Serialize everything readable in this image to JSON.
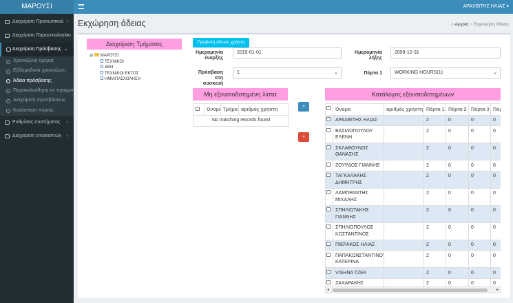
{
  "navbar": {
    "logo": "ΜΑΡΟΥΣΙ",
    "user": "ΑΡΑΧΒΙΤΗΣ ΗΛΙΑΣ"
  },
  "sidebar": {
    "items": [
      {
        "label": "Διαχείριση Προσωπικού"
      },
      {
        "label": "Διαχείριση Παρουσιολογίου"
      },
      {
        "label": "Διαχείριση Πρόσβασης",
        "children": [
          "Χρονοζώνη ημέρας",
          "Εβδομαδιαία χρονοζώνη",
          "Άδεια πρόσβασης",
          "Παρακολούθηση σε πραγματι",
          "Διαχείριση προσβάσεων",
          "Κατάσταση πόρτας"
        ]
      },
      {
        "label": "Ρυθμίσεις συστήματος"
      },
      {
        "label": "Διαχείριση επισκεπτών"
      }
    ]
  },
  "header": {
    "title": "Εκχώρηση άδειας",
    "breadcrumb": [
      "Αρχική",
      "Εκχώρηση άδειας"
    ]
  },
  "department_panel": {
    "title": "Διαχείριση Τμήματος",
    "tree": {
      "label": "ΜΑΡΟΥΣΙ",
      "children": [
        "ΤΕΧΝΙΚΟΙ",
        "ΔΕΗ",
        "ΤΕΧΝΙΚΟΙ ΕΚΤΟΣ",
        "ΗΜΙΑΠΑΣΧΟΛΗΣΗ"
      ]
    }
  },
  "form": {
    "button": "Προβολή άδειας χρήστη",
    "start_label": "Ημερομηνία έναρξης",
    "start": "2019-01-01",
    "end_label": "Ημερομηνία λήξης",
    "end": "2099-12-31",
    "device_label": "Πρόσβαση στη συσκευή",
    "device": "1",
    "door_label": "Πόρτα 1",
    "door": "WORKING HOURS(1)"
  },
  "unauthorized": {
    "title": "Μη εξουσιοδοτημένη λίστα",
    "columns": [
      "Ονομα",
      "Τμήμα",
      "αριθμός χρήστη"
    ],
    "empty": "No matching records found"
  },
  "authorized": {
    "title": "Κατάλογος εξουσιοδοτημένων",
    "columns": [
      "Ονομα",
      "αριθμός χρήστη",
      "Πόρτα 1",
      "Πόρτα 2",
      "Πόρτα 3",
      "Πόρ"
    ],
    "rows": [
      {
        "name": "ΑΡΑΧΒΙΤΗΣ ΗΛΙΑΣ",
        "doors": [
          2,
          0,
          0,
          0
        ]
      },
      {
        "name": "ΒΑΣΙΛΟΠΟΥΛΟΥ ΕΛΕΝΗ",
        "doors": [
          2,
          0,
          0,
          0
        ]
      },
      {
        "name": "ΣΚΛΑΒΟΥΝΟΣ ΘΑΝΑΣΗΣ",
        "doors": [
          2,
          0,
          0,
          0
        ]
      },
      {
        "name": "ΖΟΥΡΔΟΣ ΓΙΑΝΝΗΣ",
        "doors": [
          2,
          0,
          0,
          0
        ]
      },
      {
        "name": "ΤΑΓΚΑΛΑΚΗΣ ΔΗΜΗΤΡΗΣ",
        "doors": [
          2,
          0,
          0,
          0
        ]
      },
      {
        "name": "ΛΑΜΠΡΑΝΤΗΣ ΜΙΧΑΛΗΣ",
        "doors": [
          2,
          0,
          0,
          0
        ]
      },
      {
        "name": "ΣΠΗΛΙΩΤΑΚΗΣ ΓΙΑΝΝΗΣ",
        "doors": [
          2,
          0,
          0,
          0
        ]
      },
      {
        "name": "ΣΠΗΛΙΟΠΟΥΛΟΣ ΚΩΣΤΑΝΤΙΝΟΣ",
        "doors": [
          2,
          0,
          0,
          0
        ]
      },
      {
        "name": "ΠΙΕΡΑΚΟΣ ΗΛΙΑΣ",
        "doors": [
          2,
          0,
          0,
          0
        ]
      },
      {
        "name": "ΠΑΠΑΚΩΝΣΤΑΝΤΙΝΟΥ ΚΑΤΕΡΙΝΑ",
        "doors": [
          2,
          0,
          0,
          0
        ]
      },
      {
        "name": "VISHNA ΤΖΕΚ",
        "doors": [
          2,
          0,
          0,
          0
        ]
      },
      {
        "name": "ΖΑΧΑΡΑΚΗΣ ΛΕΩΝΙΔΑΣ",
        "doors": [
          2,
          0,
          0,
          0
        ]
      }
    ]
  }
}
